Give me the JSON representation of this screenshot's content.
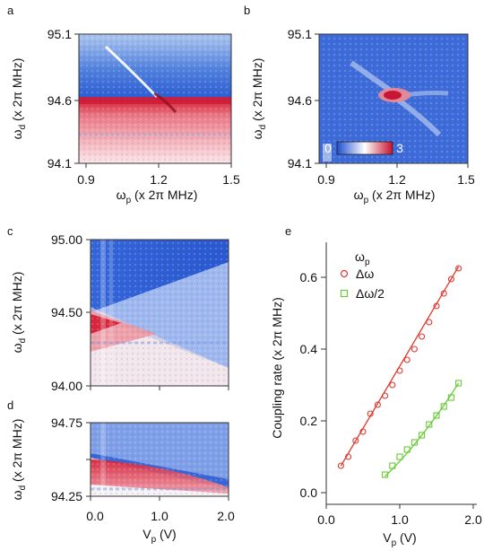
{
  "panel_labels": [
    "a",
    "b",
    "c",
    "d",
    "e"
  ],
  "colorbar": {
    "min_label": "0",
    "max_label": "3",
    "colors": [
      "#1f4fd1",
      "#ffffff",
      "#c8102e"
    ]
  },
  "colors": {
    "blue": "#2e62d6",
    "light_blue": "#b9cdf2",
    "red": "#d9263b",
    "pink": "#f2b9bf",
    "fit_red": "#e0362b",
    "fit_green": "#66cc33"
  },
  "chart_data": [
    {
      "id": "a",
      "type": "heatmap",
      "xlabel": "ω",
      "xlabel_sub": "p",
      "xlabel_unit": " (x 2π MHz)",
      "ylabel": "ω",
      "ylabel_sub": "d",
      "ylabel_unit": " (x 2π MHz)",
      "xlim": [
        0.85,
        1.5
      ],
      "ylim": [
        94.1,
        95.1
      ],
      "xticks": [
        "0.9",
        "1.2",
        "1.5"
      ],
      "yticks": [
        "94.1",
        "94.6",
        "95.1"
      ],
      "features": {
        "mode_frequency": 94.6,
        "crossing_line_from": [
          1.0,
          94.9
        ],
        "crossing_line_to": [
          1.25,
          94.52
        ]
      }
    },
    {
      "id": "b",
      "type": "heatmap",
      "xlabel": "ω",
      "xlabel_sub": "p",
      "xlabel_unit": " (x 2π MHz)",
      "ylabel": "ω",
      "ylabel_sub": "d",
      "ylabel_unit": " (x 2π MHz)",
      "xlim": [
        0.85,
        1.5
      ],
      "ylim": [
        94.1,
        95.1
      ],
      "xticks": [
        "0.9",
        "1.2",
        "1.5"
      ],
      "yticks": [
        "94.1",
        "94.6",
        "95.1"
      ],
      "features": {
        "center": [
          1.2,
          94.58
        ]
      }
    },
    {
      "id": "c",
      "type": "heatmap",
      "ylabel": "ω",
      "ylabel_sub": "d",
      "ylabel_unit": " (x 2π MHz)",
      "xlim": [
        0,
        2.0
      ],
      "ylim": [
        94.0,
        95.0
      ],
      "yticks": [
        "94.00",
        "94.50",
        "95.00"
      ],
      "features": {
        "split_center": 94.47
      }
    },
    {
      "id": "d",
      "type": "heatmap",
      "xlabel": "V",
      "xlabel_sub": "p",
      "xlabel_unit": " (V)",
      "ylabel": "ω",
      "ylabel_sub": "d",
      "ylabel_unit": " (x 2π MHz)",
      "xlim": [
        0,
        2.0
      ],
      "ylim": [
        94.25,
        94.75
      ],
      "xticks": [
        "0.0",
        "1.0",
        "2.0"
      ],
      "yticks": [
        "94.25",
        "94.75"
      ],
      "features": {
        "curve_top": 94.55
      }
    },
    {
      "id": "e",
      "type": "scatter",
      "xlabel": "V",
      "xlabel_sub": "p",
      "xlabel_unit": " (V)",
      "ylabel": "Coupling rate (x 2π MHz)",
      "xlim": [
        0,
        2.0
      ],
      "ylim": [
        -0.02,
        0.68
      ],
      "xticks": [
        "0.0",
        "1.0",
        "2.0"
      ],
      "yticks": [
        "0.0",
        "0.2",
        "0.4",
        "0.6"
      ],
      "legend_title": "ω",
      "legend_title_sub": "p",
      "series": [
        {
          "name": "Δω",
          "marker": "circle",
          "color": "#e0362b",
          "x": [
            0.2,
            0.3,
            0.4,
            0.5,
            0.6,
            0.7,
            0.8,
            0.9,
            1.0,
            1.1,
            1.2,
            1.3,
            1.4,
            1.5,
            1.6,
            1.7,
            1.8
          ],
          "y": [
            0.075,
            0.1,
            0.145,
            0.17,
            0.22,
            0.245,
            0.27,
            0.3,
            0.34,
            0.37,
            0.4,
            0.435,
            0.475,
            0.52,
            0.555,
            0.595,
            0.625
          ]
        },
        {
          "name": "Δω/2",
          "marker": "square",
          "color": "#66cc33",
          "x": [
            0.8,
            0.9,
            1.0,
            1.1,
            1.2,
            1.3,
            1.4,
            1.5,
            1.6,
            1.7,
            1.8
          ],
          "y": [
            0.05,
            0.075,
            0.1,
            0.12,
            0.14,
            0.16,
            0.19,
            0.215,
            0.24,
            0.265,
            0.305
          ]
        }
      ],
      "fits": [
        {
          "color": "#e0362b",
          "x": [
            0.2,
            1.8
          ],
          "y": [
            0.075,
            0.63
          ]
        },
        {
          "color": "#66cc33",
          "x": [
            0.8,
            1.8
          ],
          "y": [
            0.045,
            0.305
          ],
          "curvature": 0.03
        }
      ]
    }
  ]
}
